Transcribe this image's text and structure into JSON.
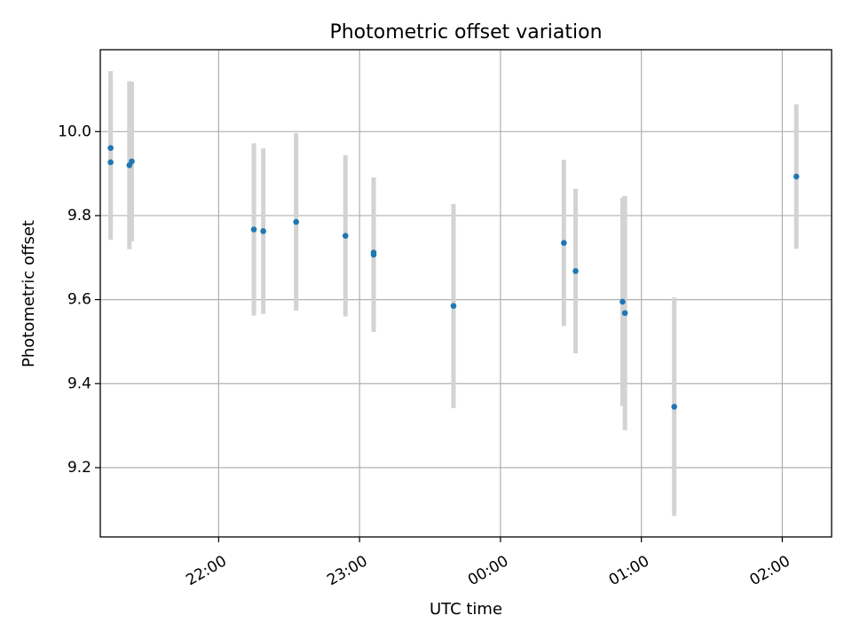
{
  "chart_data": {
    "type": "scatter",
    "title": "Photometric offset variation",
    "xlabel": "UTC time",
    "ylabel": "Photometric offset",
    "x_domain_hours": [
      21.16,
      26.35
    ],
    "ylim": [
      9.035,
      10.195
    ],
    "grid": true,
    "x_ticks": [
      {
        "label": "22:00",
        "hour": 22.0
      },
      {
        "label": "23:00",
        "hour": 23.0
      },
      {
        "label": "00:00",
        "hour": 24.0
      },
      {
        "label": "01:00",
        "hour": 25.0
      },
      {
        "label": "02:00",
        "hour": 26.0
      }
    ],
    "y_ticks": [
      {
        "label": "9.2",
        "value": 9.2
      },
      {
        "label": "9.4",
        "value": 9.4
      },
      {
        "label": "9.6",
        "value": 9.6
      },
      {
        "label": "9.8",
        "value": 9.8
      },
      {
        "label": "10.0",
        "value": 10.0
      }
    ],
    "series": [
      {
        "marker_color": "#1f77b4",
        "errorbar_color": "#d3d3d3",
        "points": [
          {
            "time": "21:14",
            "y": 9.927,
            "err": 0.185
          },
          {
            "time": "21:14",
            "y": 9.961,
            "err": 0.183
          },
          {
            "time": "21:22",
            "y": 9.92,
            "err": 0.2
          },
          {
            "time": "21:23",
            "y": 9.929,
            "err": 0.19
          },
          {
            "time": "22:15",
            "y": 9.767,
            "err": 0.205
          },
          {
            "time": "22:19",
            "y": 9.763,
            "err": 0.197
          },
          {
            "time": "22:33",
            "y": 9.785,
            "err": 0.211
          },
          {
            "time": "22:54",
            "y": 9.752,
            "err": 0.192
          },
          {
            "time": "23:06",
            "y": 9.707,
            "err": 0.184
          },
          {
            "time": "23:06",
            "y": 9.712,
            "err": 0.176
          },
          {
            "time": "23:40",
            "y": 9.585,
            "err": 0.243
          },
          {
            "time": "00:27",
            "y": 9.735,
            "err": 0.198
          },
          {
            "time": "00:32",
            "y": 9.668,
            "err": 0.196
          },
          {
            "time": "00:52",
            "y": 9.595,
            "err": 0.248
          },
          {
            "time": "00:53",
            "y": 9.568,
            "err": 0.279
          },
          {
            "time": "01:14",
            "y": 9.345,
            "err": 0.26
          },
          {
            "time": "02:06",
            "y": 9.893,
            "err": 0.172
          }
        ]
      }
    ]
  }
}
